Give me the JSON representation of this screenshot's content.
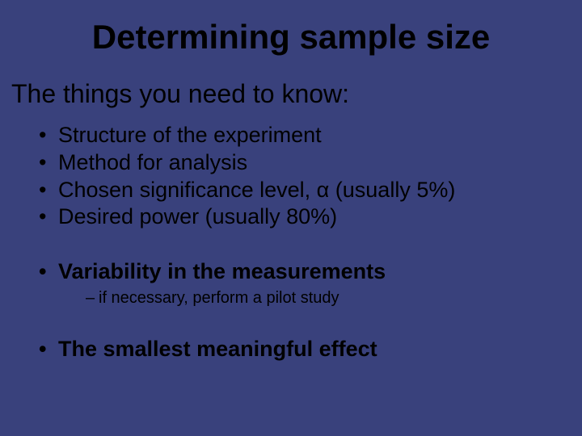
{
  "slide": {
    "background_color": "#39417c",
    "text_color": "#000000",
    "font_family": "Comic Sans MS",
    "title": {
      "text": "Determining sample size",
      "fontsize": 42,
      "bold": true,
      "align": "center"
    },
    "subtitle": {
      "text": "The things you need to know:",
      "fontsize": 32
    },
    "bullets": [
      {
        "text": "Structure of the experiment",
        "bold": false
      },
      {
        "text": "Method for analysis",
        "bold": false
      },
      {
        "text": "Chosen significance level, α (usually 5%)",
        "bold": false
      },
      {
        "text": "Desired power (usually 80%)",
        "bold": false
      },
      {
        "text": "Variability in the measurements",
        "bold": true,
        "gap_above": true,
        "sub": [
          {
            "text": "if necessary, perform a pilot study"
          }
        ]
      },
      {
        "text": "The smallest meaningful effect",
        "bold": true,
        "gap_above": true
      }
    ]
  }
}
